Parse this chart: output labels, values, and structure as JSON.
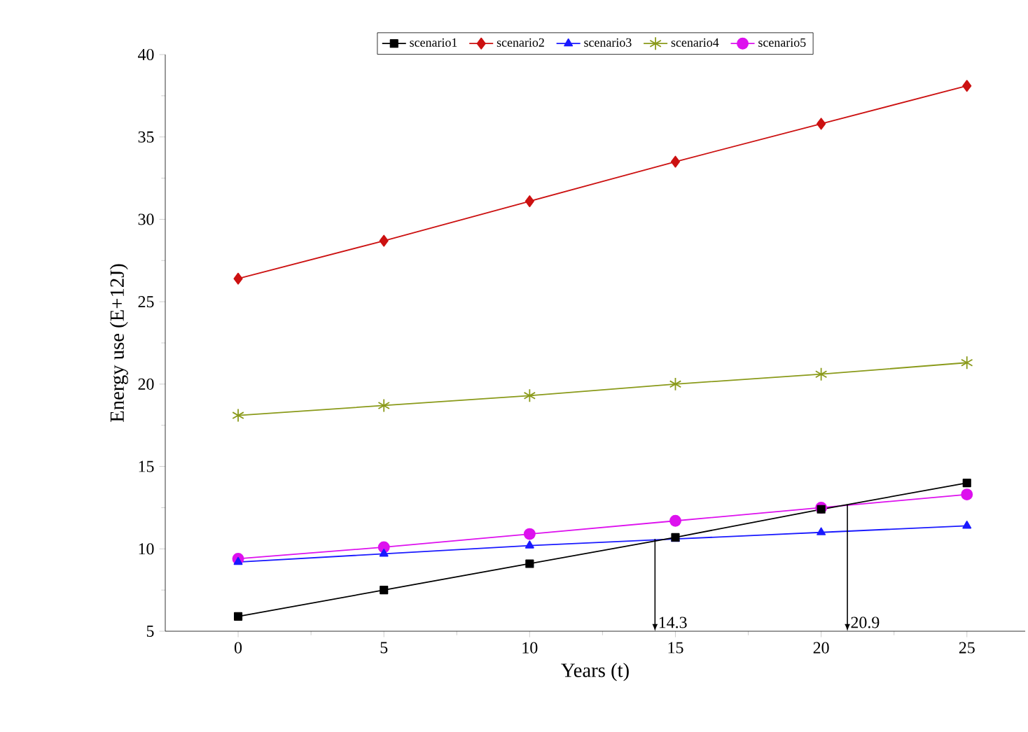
{
  "chart_data": {
    "type": "line",
    "xlabel": "Years (t)",
    "ylabel": "Energy use (E+12J)",
    "x": [
      0,
      5,
      10,
      15,
      20,
      25
    ],
    "series": [
      {
        "name": "scenario1",
        "color": "#000000",
        "marker": "square",
        "values": [
          5.9,
          7.5,
          9.1,
          10.7,
          12.4,
          14.0
        ]
      },
      {
        "name": "scenario2",
        "color": "#cc1111",
        "marker": "diamond",
        "values": [
          26.4,
          28.7,
          31.1,
          33.5,
          35.8,
          38.1
        ]
      },
      {
        "name": "scenario3",
        "color": "#1a1aff",
        "marker": "triangle",
        "values": [
          9.2,
          9.7,
          10.2,
          10.6,
          11.0,
          11.4
        ]
      },
      {
        "name": "scenario4",
        "color": "#8a9a1a",
        "marker": "cross",
        "values": [
          18.1,
          18.7,
          19.3,
          20.0,
          20.6,
          21.3
        ]
      },
      {
        "name": "scenario5",
        "color": "#dd11ee",
        "marker": "circle",
        "values": [
          9.4,
          10.1,
          10.9,
          11.7,
          12.5,
          13.3
        ]
      }
    ],
    "annotations": [
      {
        "text": "14.3",
        "x": 14.3,
        "y": 10.6
      },
      {
        "text": "20.9",
        "x": 20.9,
        "y": 12.7
      }
    ],
    "xlim": [
      -2.5,
      27
    ],
    "ylim": [
      5,
      40
    ],
    "xticks": [
      0,
      5,
      10,
      15,
      20,
      25
    ],
    "yticks": [
      5,
      10,
      15,
      20,
      25,
      30,
      35,
      40
    ],
    "grid": false,
    "legend": "top",
    "line_style": "solid"
  }
}
